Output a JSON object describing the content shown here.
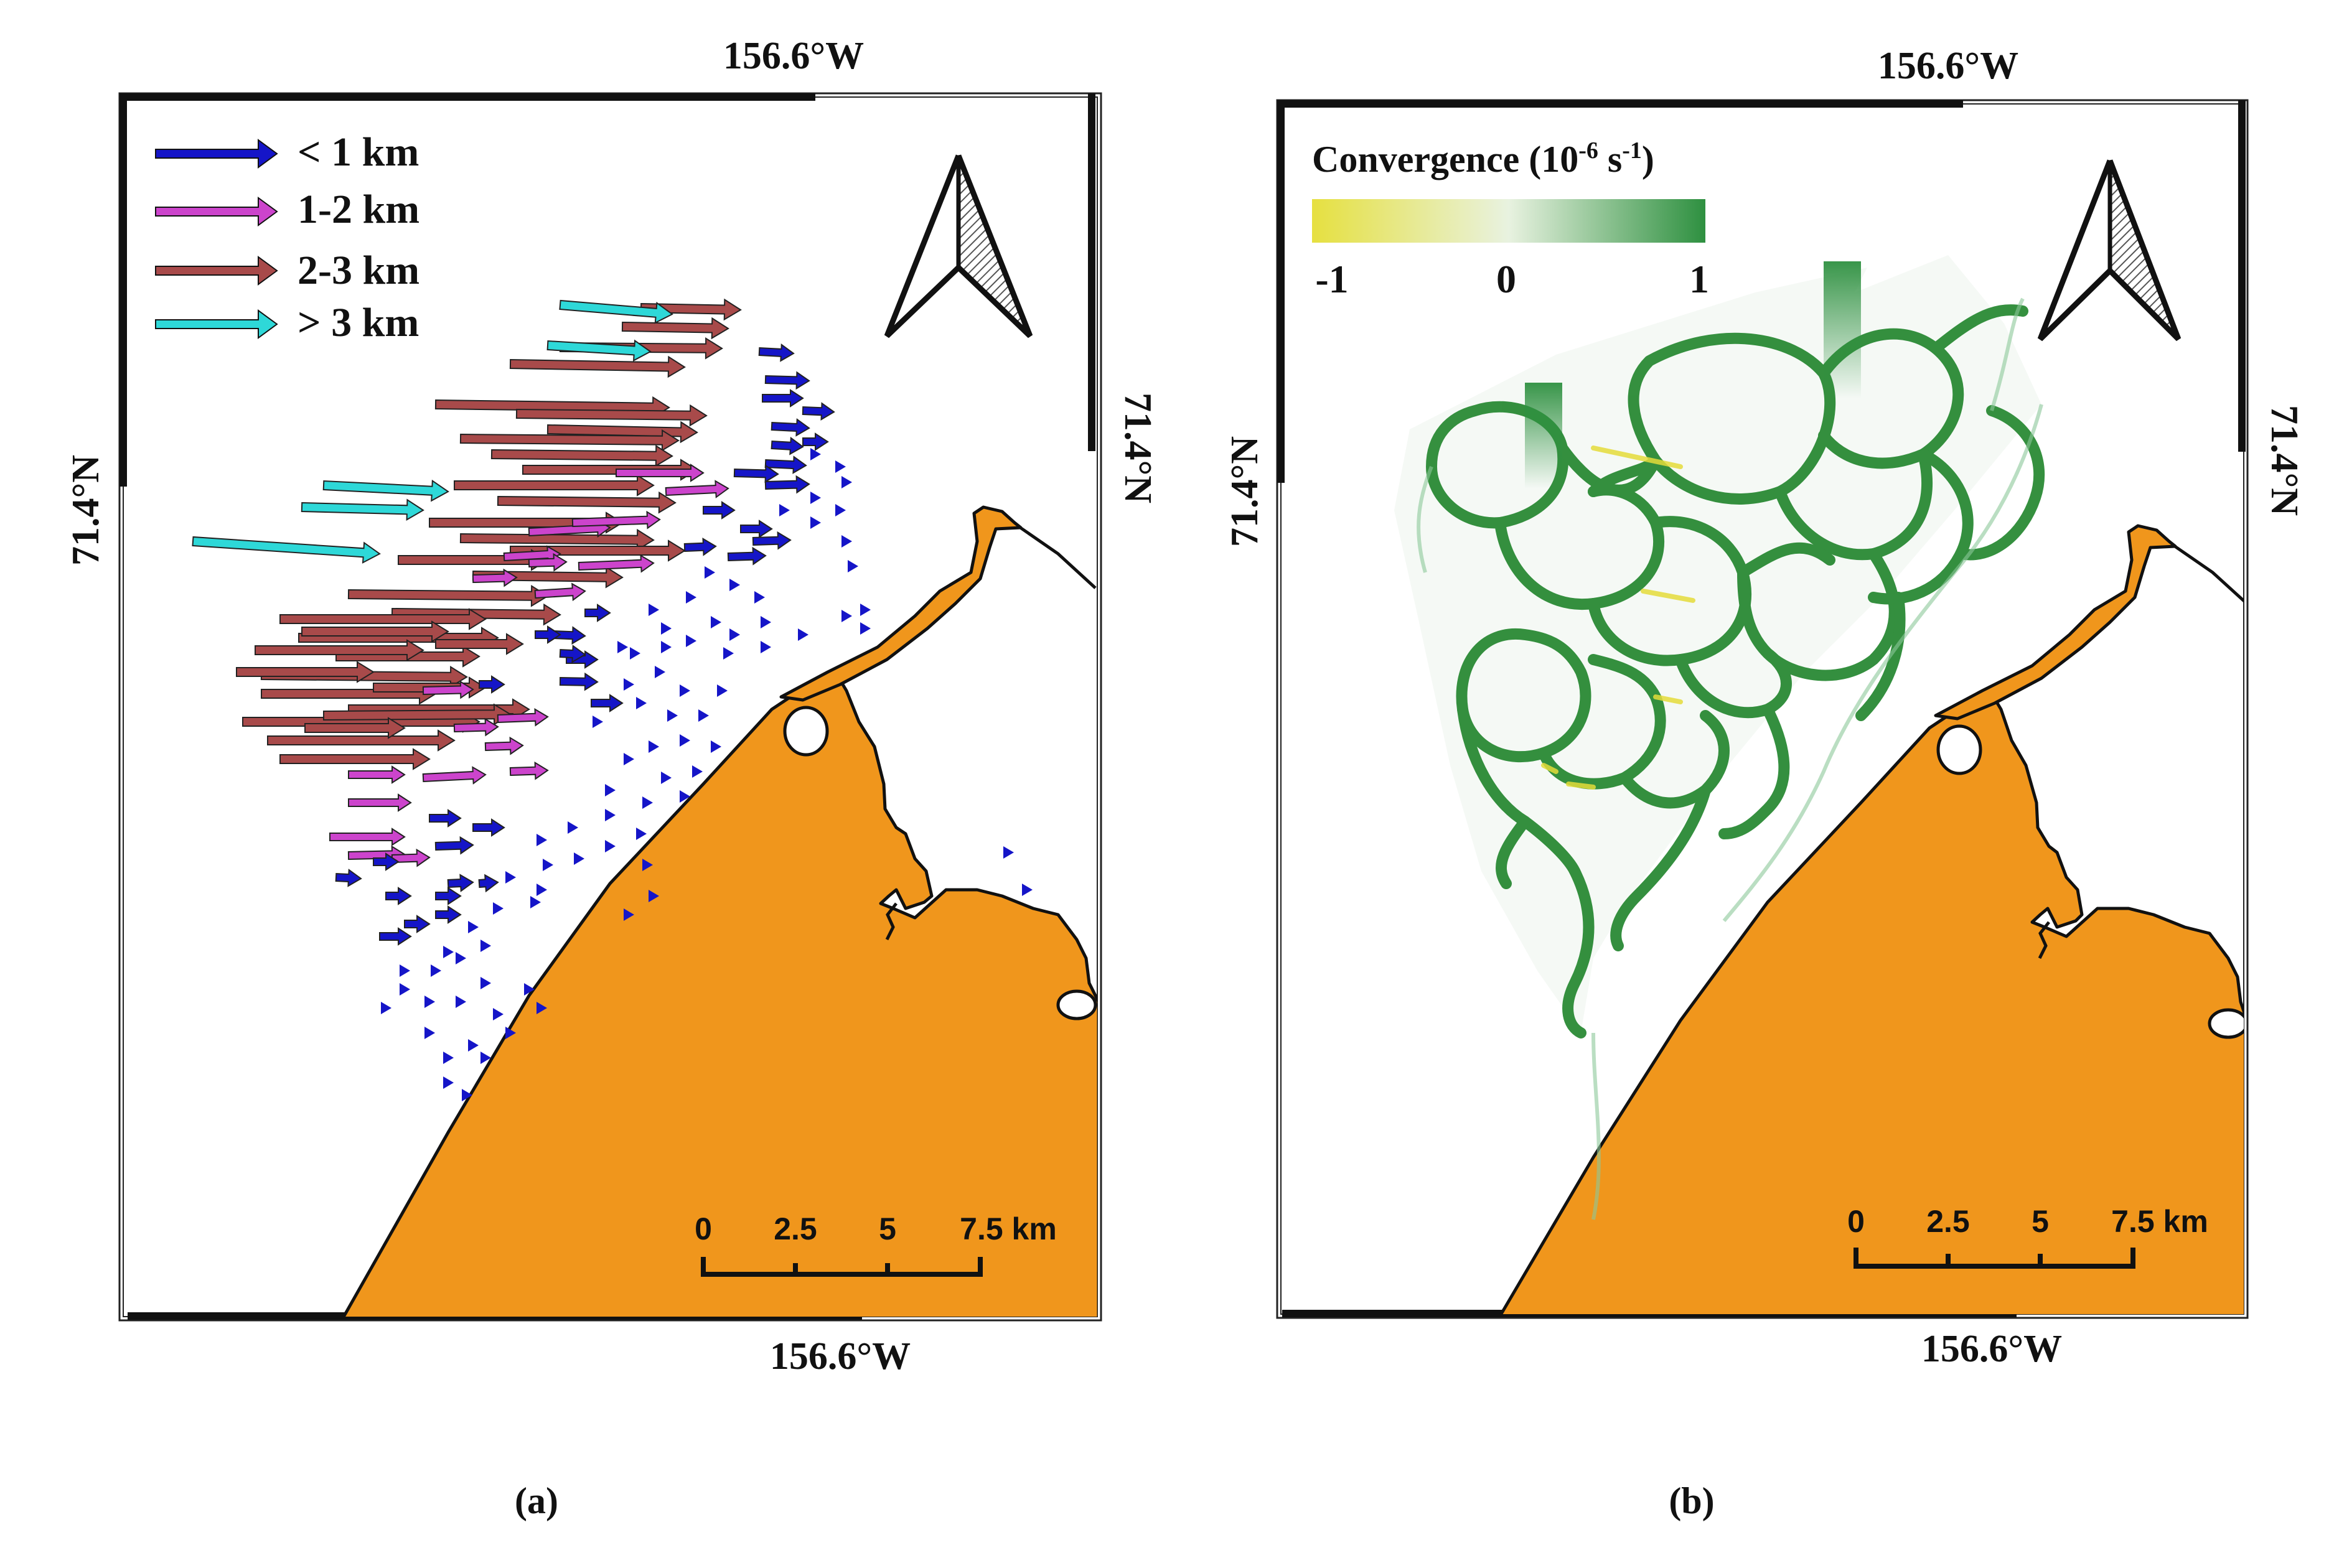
{
  "panel_a": {
    "label": "(a)",
    "coords": {
      "top": "156.6°W",
      "bottom": "156.6°W",
      "left": "71.4°N",
      "right": "71.4°N"
    },
    "legend": [
      {
        "label": "< 1 km",
        "color": "#1515C8"
      },
      {
        "label": "1-2 km",
        "color": "#CC44CC"
      },
      {
        "label": "2-3 km",
        "color": "#A84A4A"
      },
      {
        "label": "> 3 km",
        "color": "#2ED8D8"
      }
    ],
    "scale_bar": {
      "ticks": [
        "0",
        "2.5",
        "5"
      ],
      "end_label": "7.5 km"
    }
  },
  "panel_b": {
    "label": "(b)",
    "coords": {
      "top": "156.6°W",
      "bottom": "156.6°W",
      "left": "71.4°N",
      "right": "71.4°N"
    },
    "colorbar": {
      "title_main": "Convergence (10",
      "title_exp": "-6",
      "title_mid": " s",
      "title_exp2": "-1",
      "title_end": ")",
      "ticks": [
        "-1",
        "0",
        "1"
      ],
      "colors": [
        "#E6E040",
        "#E8F2E0",
        "#2E9040"
      ]
    },
    "scale_bar": {
      "ticks": [
        "0",
        "2.5",
        "5"
      ],
      "end_label": "7.5 km"
    }
  },
  "colors": {
    "land": "#F0961C",
    "coast": "#111111",
    "network": "#2A8A35"
  }
}
